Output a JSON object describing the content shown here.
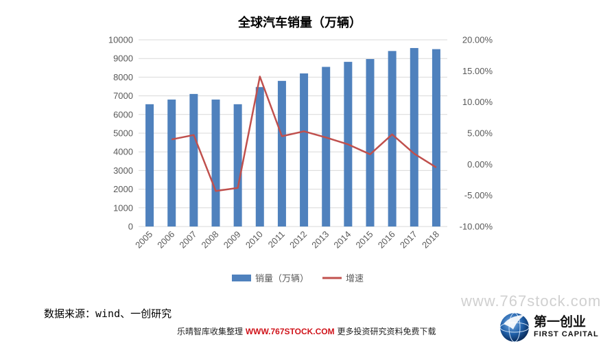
{
  "chart_data": {
    "type": "bar+line",
    "title": "全球汽车销量（万辆）",
    "categories": [
      "2005",
      "2006",
      "2007",
      "2008",
      "2009",
      "2010",
      "2011",
      "2012",
      "2013",
      "2014",
      "2015",
      "2016",
      "2017",
      "2018"
    ],
    "series": [
      {
        "name": "销量（万辆）",
        "type": "bar",
        "axis": "left",
        "color": "#4f81bd",
        "values": [
          6550,
          6800,
          7100,
          6800,
          6550,
          7470,
          7800,
          8200,
          8550,
          8820,
          8970,
          9400,
          9560,
          9500
        ]
      },
      {
        "name": "增速",
        "type": "line",
        "axis": "right",
        "color": "#c0504d",
        "values": [
          null,
          4.0,
          4.7,
          -4.3,
          -3.8,
          14.1,
          4.5,
          5.3,
          4.3,
          3.2,
          1.6,
          4.8,
          1.7,
          -0.5
        ]
      }
    ],
    "y_left": {
      "min": 0,
      "max": 10000,
      "ticks": [
        "0",
        "1000",
        "2000",
        "3000",
        "4000",
        "5000",
        "6000",
        "7000",
        "8000",
        "9000",
        "10000"
      ]
    },
    "y_right": {
      "min": -10,
      "max": 20,
      "ticks": [
        "-10.00%",
        "-5.00%",
        "0.00%",
        "5.00%",
        "10.00%",
        "15.00%",
        "20.00%"
      ]
    },
    "grid": true,
    "legend_position": "bottom"
  },
  "source_text": "数据来源：wind、一创研究",
  "watermark_text": "www.767stock.com",
  "footer": {
    "prefix": "乐晴智库收集整理",
    "site": "WWW.767STOCK.COM",
    "suffix": "更多投资研究资料免费下载"
  },
  "logo": {
    "name_cn": "第一创业",
    "name_en": "FIRST CAPITAL",
    "icon": "globe-eagle-icon",
    "colors": {
      "primary": "#1f5fa8",
      "accent": "#0b2e5e"
    }
  }
}
